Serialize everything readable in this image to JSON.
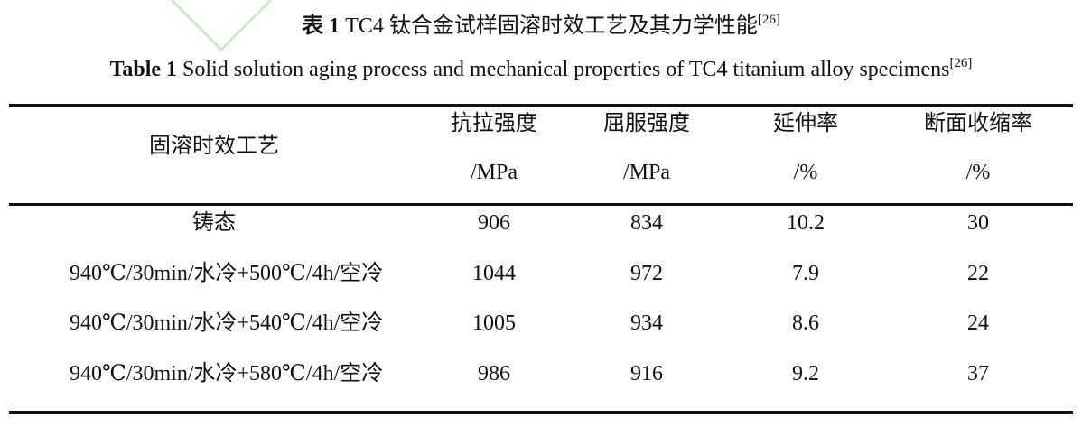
{
  "caption": {
    "cn_label": "表 1",
    "cn_text": "TC4 钛合金试样固溶时效工艺及其力学性能",
    "cn_ref": "[26]",
    "en_label": "Table 1",
    "en_text": "Solid solution aging process and mechanical properties of TC4 titanium alloy specimens",
    "en_ref": "[26]"
  },
  "table": {
    "header": [
      {
        "name": "固溶时效工艺"
      },
      {
        "name": "抗拉强度",
        "unit": "/MPa"
      },
      {
        "name": "屈服强度",
        "unit": "/MPa"
      },
      {
        "name": "延伸率",
        "unit": "/%"
      },
      {
        "name": "断面收缩率",
        "unit": "/%"
      }
    ],
    "rows": [
      [
        "铸态",
        "906",
        "834",
        "10.2",
        "30"
      ],
      [
        "940℃/30min/水冷+500℃/4h/空冷",
        "1044",
        "972",
        "7.9",
        "22"
      ],
      [
        "940℃/30min/水冷+540℃/4h/空冷",
        "1005",
        "934",
        "8.6",
        "24"
      ],
      [
        "940℃/30min/水冷+580℃/4h/空冷",
        "986",
        "916",
        "9.2",
        "37"
      ]
    ]
  }
}
